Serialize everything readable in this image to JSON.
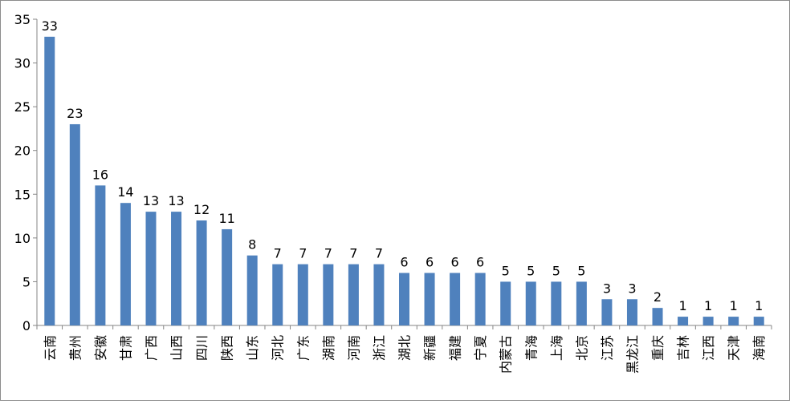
{
  "chart_data": {
    "type": "bar",
    "title": "",
    "xlabel": "",
    "ylabel": "",
    "ylim": [
      0,
      35
    ],
    "yticks": [
      0,
      5,
      10,
      15,
      20,
      25,
      30,
      35
    ],
    "categories": [
      "云南",
      "贵州",
      "安徽",
      "甘肃",
      "广西",
      "山西",
      "四川",
      "陕西",
      "山东",
      "河北",
      "广东",
      "湖南",
      "河南",
      "浙江",
      "湖北",
      "新疆",
      "福建",
      "宁夏",
      "内蒙古",
      "青海",
      "上海",
      "北京",
      "江苏",
      "黑龙江",
      "重庆",
      "吉林",
      "江西",
      "天津",
      "海南"
    ],
    "values": [
      33,
      23,
      16,
      14,
      13,
      13,
      12,
      11,
      8,
      7,
      7,
      7,
      7,
      7,
      6,
      6,
      6,
      6,
      5,
      5,
      5,
      5,
      3,
      3,
      2,
      1,
      1,
      1,
      1
    ],
    "bar_color": "#4f81bd",
    "grid": false,
    "data_labels": true
  }
}
